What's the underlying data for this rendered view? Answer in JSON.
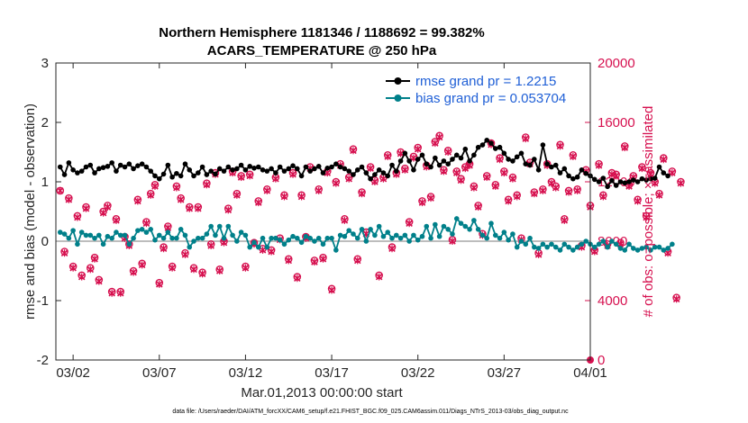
{
  "chart_data": {
    "type": "line",
    "title": [
      "Northern Hemisphere 1181346 / 1188692 = 99.382%",
      "ACARS_TEMPERATURE @ 250 hPa"
    ],
    "xlabel": "Mar.01,2013 00:00:00 start",
    "ylabel": "rmse and bias (model - observation)",
    "ylabel_right": "# of obs: o=possible; ×=assimilated",
    "footer": "data file: /Users/raeder/DAI/ATM_forcXX/CAM6_setup/f.e21.FHIST_BGC.f09_025.CAM6assim.011/Diags_NTrS_2013-03/obs_diag_output.nc",
    "x_range": [
      0,
      31
    ],
    "ylim": [
      -2,
      3
    ],
    "ylim_right": [
      0,
      20000
    ],
    "x_ticks": [
      {
        "v": 1,
        "label": "03/02"
      },
      {
        "v": 6,
        "label": "03/07"
      },
      {
        "v": 11,
        "label": "03/12"
      },
      {
        "v": 16,
        "label": "03/17"
      },
      {
        "v": 21,
        "label": "03/22"
      },
      {
        "v": 26,
        "label": "03/27"
      },
      {
        "v": 31,
        "label": "04/01"
      }
    ],
    "y_ticks": [
      -2,
      -1,
      0,
      1,
      2,
      3
    ],
    "y_ticks_right": [
      0,
      4000,
      8000,
      12000,
      16000,
      20000
    ],
    "legend": [
      {
        "label": "rmse grand pr = 1.2215",
        "color": "#000000"
      },
      {
        "label": "bias grand pr = 0.053704",
        "color": "#00808a"
      }
    ],
    "x_step": 0.25,
    "series": [
      {
        "name": "rmse",
        "axis": "left",
        "color": "#000000",
        "values": [
          1.25,
          1.12,
          1.32,
          1.2,
          1.15,
          1.18,
          1.25,
          1.28,
          1.15,
          1.22,
          1.24,
          1.26,
          1.32,
          1.18,
          1.28,
          1.25,
          1.3,
          1.22,
          1.27,
          1.3,
          1.25,
          1.18,
          1.1,
          1.05,
          1.13,
          1.28,
          1.08,
          1.14,
          1.1,
          1.3,
          1.2,
          1.1,
          1.15,
          1.25,
          1.12,
          1.18,
          1.13,
          1.22,
          1.18,
          1.25,
          1.2,
          1.22,
          1.28,
          1.2,
          1.26,
          1.23,
          1.25,
          1.2,
          1.18,
          1.22,
          1.15,
          1.25,
          1.18,
          1.22,
          1.27,
          1.22,
          1.1,
          1.25,
          1.18,
          1.22,
          1.26,
          1.15,
          1.23,
          1.25,
          1.3,
          1.25,
          1.22,
          1.18,
          1.12,
          1.2,
          1.25,
          1.15,
          1.05,
          1.12,
          1.2,
          1.15,
          1.1,
          1.28,
          1.18,
          1.35,
          1.48,
          1.35,
          1.2,
          1.38,
          1.45,
          1.3,
          1.25,
          1.4,
          1.28,
          1.35,
          1.3,
          1.38,
          1.45,
          1.4,
          1.55,
          1.35,
          1.45,
          1.58,
          1.62,
          1.7,
          1.65,
          1.56,
          1.58,
          1.48,
          1.38,
          1.35,
          1.42,
          1.48,
          1.3,
          1.28,
          1.38,
          1.2,
          1.62,
          1.3,
          1.25,
          1.28,
          1.15,
          1.22,
          1.1,
          1.05,
          1.08,
          1.2,
          1.14,
          1.1,
          1.04,
          1.0,
          1.06,
          0.92,
          1.02,
          0.94,
          1.0,
          0.98,
          1.0,
          1.03,
          1.0,
          1.05,
          1.03,
          1.05,
          1.06,
          1.25,
          1.15,
          1.1
        ]
      },
      {
        "name": "bias",
        "axis": "left",
        "color": "#00808a",
        "values": [
          0.15,
          0.12,
          0.05,
          0.18,
          -0.05,
          0.15,
          0.1,
          0.1,
          0.05,
          0.1,
          -0.05,
          0.08,
          0.05,
          0.15,
          0.1,
          0.1,
          -0.05,
          0.05,
          0.18,
          0.2,
          0.15,
          0.2,
          0.02,
          0.1,
          0.05,
          0.15,
          0.05,
          0.05,
          0.2,
          0.1,
          -0.1,
          0.0,
          0.05,
          0.05,
          0.12,
          0.25,
          0.1,
          0.25,
          0.05,
          0.25,
          0.1,
          0.0,
          0.15,
          0.1,
          -0.1,
          -0.02,
          -0.1,
          0.05,
          -0.1,
          0.05,
          0.05,
          0.02,
          -0.05,
          0.02,
          0.08,
          0.05,
          -0.02,
          0.08,
          0.05,
          0.0,
          0.05,
          -0.05,
          0.05,
          0.05,
          -0.15,
          0.1,
          0.08,
          0.18,
          0.12,
          0.05,
          0.2,
          0.0,
          0.2,
          0.1,
          0.25,
          0.08,
          0.15,
          0.05,
          0.1,
          0.05,
          0.1,
          0.0,
          0.1,
          0.02,
          0.08,
          0.25,
          0.05,
          0.28,
          0.08,
          0.25,
          0.2,
          0.12,
          0.38,
          0.3,
          0.25,
          0.2,
          0.35,
          0.2,
          0.1,
          0.05,
          0.3,
          0.1,
          0.05,
          0.15,
          0.02,
          0.12,
          -0.1,
          0.0,
          -0.05,
          0.05,
          -0.1,
          -0.12,
          -0.05,
          -0.1,
          -0.05,
          -0.1,
          -0.15,
          -0.05,
          -0.1,
          -0.15,
          -0.1,
          -0.05,
          0.0,
          -0.05,
          -0.1,
          -0.05,
          0.0,
          -0.1,
          0.0,
          -0.05,
          -0.12,
          -0.15,
          -0.05,
          -0.12,
          -0.15,
          -0.12,
          -0.1,
          -0.15,
          -0.1,
          -0.1,
          -0.15,
          -0.12,
          -0.05
        ]
      },
      {
        "name": "# obs possible",
        "axis": "right",
        "color": "#d6104f",
        "values": [
          11400,
          7300,
          10900,
          6300,
          9700,
          5700,
          10300,
          6200,
          6900,
          5400,
          10000,
          10400,
          4600,
          9500,
          4600,
          8300,
          7800,
          6000,
          10800,
          6500,
          9300,
          11200,
          11800,
          5200,
          7600,
          9000,
          6300,
          11700,
          10900,
          7200,
          10300,
          6200,
          10300,
          5900,
          11900,
          7800,
          12600,
          6100,
          8000,
          10200,
          12700,
          11200,
          12400,
          6300,
          12500,
          7900,
          10700,
          7500,
          11500,
          7400,
          12300,
          8200,
          11100,
          6800,
          12600,
          5600,
          11100,
          8300,
          13000,
          6700,
          11500,
          6900,
          12700,
          4800,
          12000,
          13200,
          9500,
          12300,
          14200,
          6800,
          11300,
          8600,
          13000,
          12100,
          5700,
          12300,
          13800,
          7600,
          12600,
          14000,
          12900,
          9300,
          13700,
          14300,
          10700,
          13100,
          11000,
          14700,
          15100,
          12800,
          14100,
          8100,
          12700,
          12200,
          13000,
          13200,
          11700,
          10400,
          8500,
          12400,
          14600,
          11800,
          13600,
          12700,
          10800,
          12300,
          11100,
          8200,
          15000,
          13300,
          11300,
          7200,
          11500,
          13200,
          12000,
          11700,
          14500,
          9500,
          11400,
          13800,
          11500,
          7700,
          12800,
          10400,
          7400,
          13200,
          11100,
          7800,
          12600,
          12500,
          7900,
          14400,
          11800,
          12400,
          10800,
          13000,
          9700,
          12600,
          12000,
          11200,
          13600,
          7300,
          12700,
          4200,
          12000
        ]
      },
      {
        "name": "# obs assimilated",
        "axis": "right",
        "color": "#d6104f",
        "values": [
          11400,
          7200,
          10800,
          6200,
          9600,
          5600,
          10200,
          6100,
          6800,
          5300,
          9900,
          10300,
          4500,
          9400,
          4500,
          8200,
          7700,
          5900,
          10700,
          6400,
          9200,
          11100,
          11700,
          5100,
          7500,
          8900,
          6200,
          11600,
          10800,
          7100,
          10200,
          6100,
          10200,
          5800,
          11800,
          7700,
          12500,
          6000,
          7900,
          10100,
          12600,
          11100,
          12300,
          6200,
          12400,
          7800,
          10600,
          7400,
          11400,
          7300,
          12200,
          8100,
          11000,
          6700,
          12500,
          5500,
          11000,
          8200,
          12900,
          6600,
          11400,
          6800,
          12600,
          4700,
          11900,
          13100,
          9400,
          12200,
          14100,
          6700,
          11200,
          8500,
          12900,
          12000,
          5600,
          12200,
          13700,
          7500,
          12500,
          13900,
          12800,
          9200,
          13600,
          14200,
          10600,
          13000,
          10900,
          14600,
          15000,
          12700,
          14000,
          8000,
          12600,
          12100,
          12900,
          13100,
          11600,
          10300,
          8400,
          12300,
          14500,
          11700,
          13500,
          12600,
          10700,
          12200,
          11000,
          8100,
          14900,
          13200,
          11200,
          7100,
          11400,
          13100,
          11900,
          11600,
          14400,
          9400,
          11300,
          13700,
          11400,
          7600,
          12700,
          10300,
          7300,
          13100,
          11000,
          7700,
          12500,
          12400,
          7800,
          14300,
          11700,
          12300,
          10700,
          12900,
          9600,
          12500,
          11900,
          11100,
          13500,
          7200,
          12600,
          4100,
          11900
        ]
      }
    ],
    "right_axis_extra": [
      {
        "name": "# obs possible",
        "x": 31,
        "value": 0
      }
    ]
  }
}
